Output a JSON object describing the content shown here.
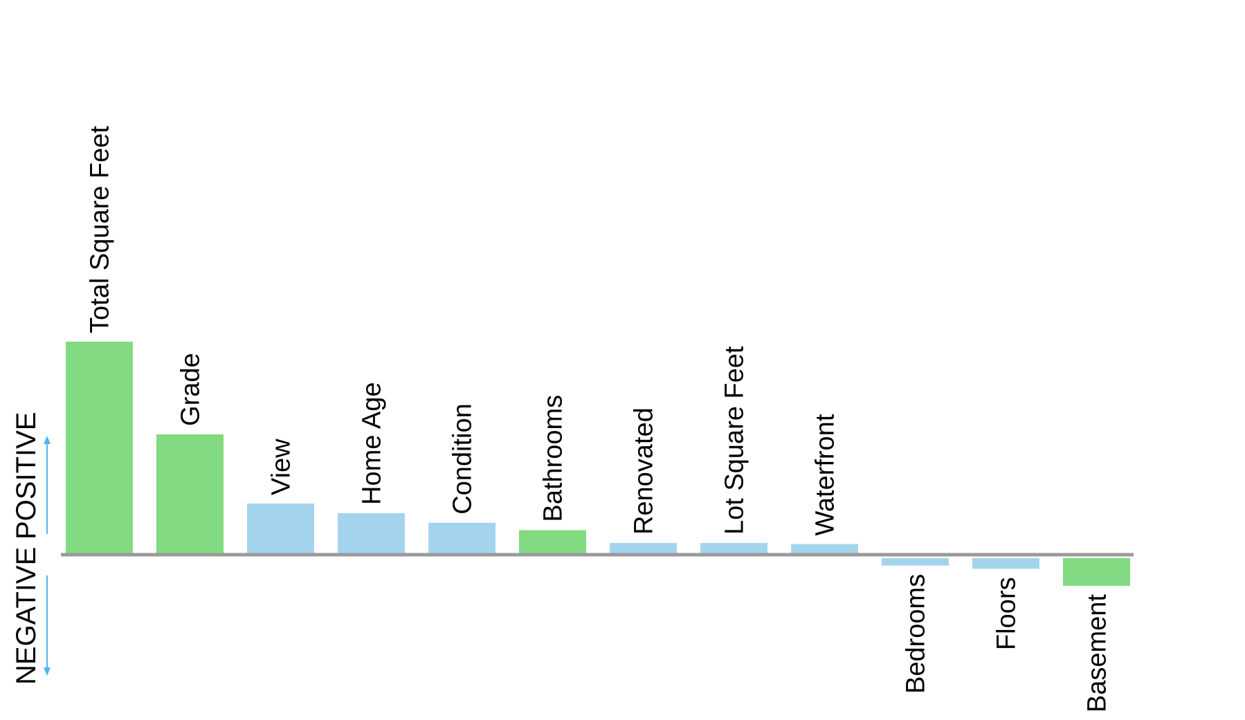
{
  "chart_data": {
    "type": "bar",
    "title": "",
    "xlabel": "",
    "ylabel": "",
    "categories": [
      "Total Square Feet",
      "Grade",
      "View",
      "Home Age",
      "Condition",
      "Bathrooms",
      "Renovated",
      "Lot Square Feet",
      "Waterfront",
      "Bedrooms",
      "Floors",
      "Basement"
    ],
    "values": [
      100,
      56.5,
      24,
      19.5,
      15,
      11.5,
      5.5,
      5.5,
      5,
      -3.5,
      -5,
      -13
    ],
    "highlighted": [
      true,
      true,
      false,
      false,
      false,
      true,
      false,
      false,
      false,
      false,
      false,
      true
    ],
    "ylim": [
      -60,
      100
    ],
    "grid": false,
    "legend": "none",
    "positive_label": "POSITIVE",
    "negative_label": "NEGATIVE",
    "colors": {
      "highlight": "#82da82",
      "default": "#a4d4ed",
      "baseline": "#9a9a9a",
      "arrow": "#4cb6ea"
    }
  }
}
